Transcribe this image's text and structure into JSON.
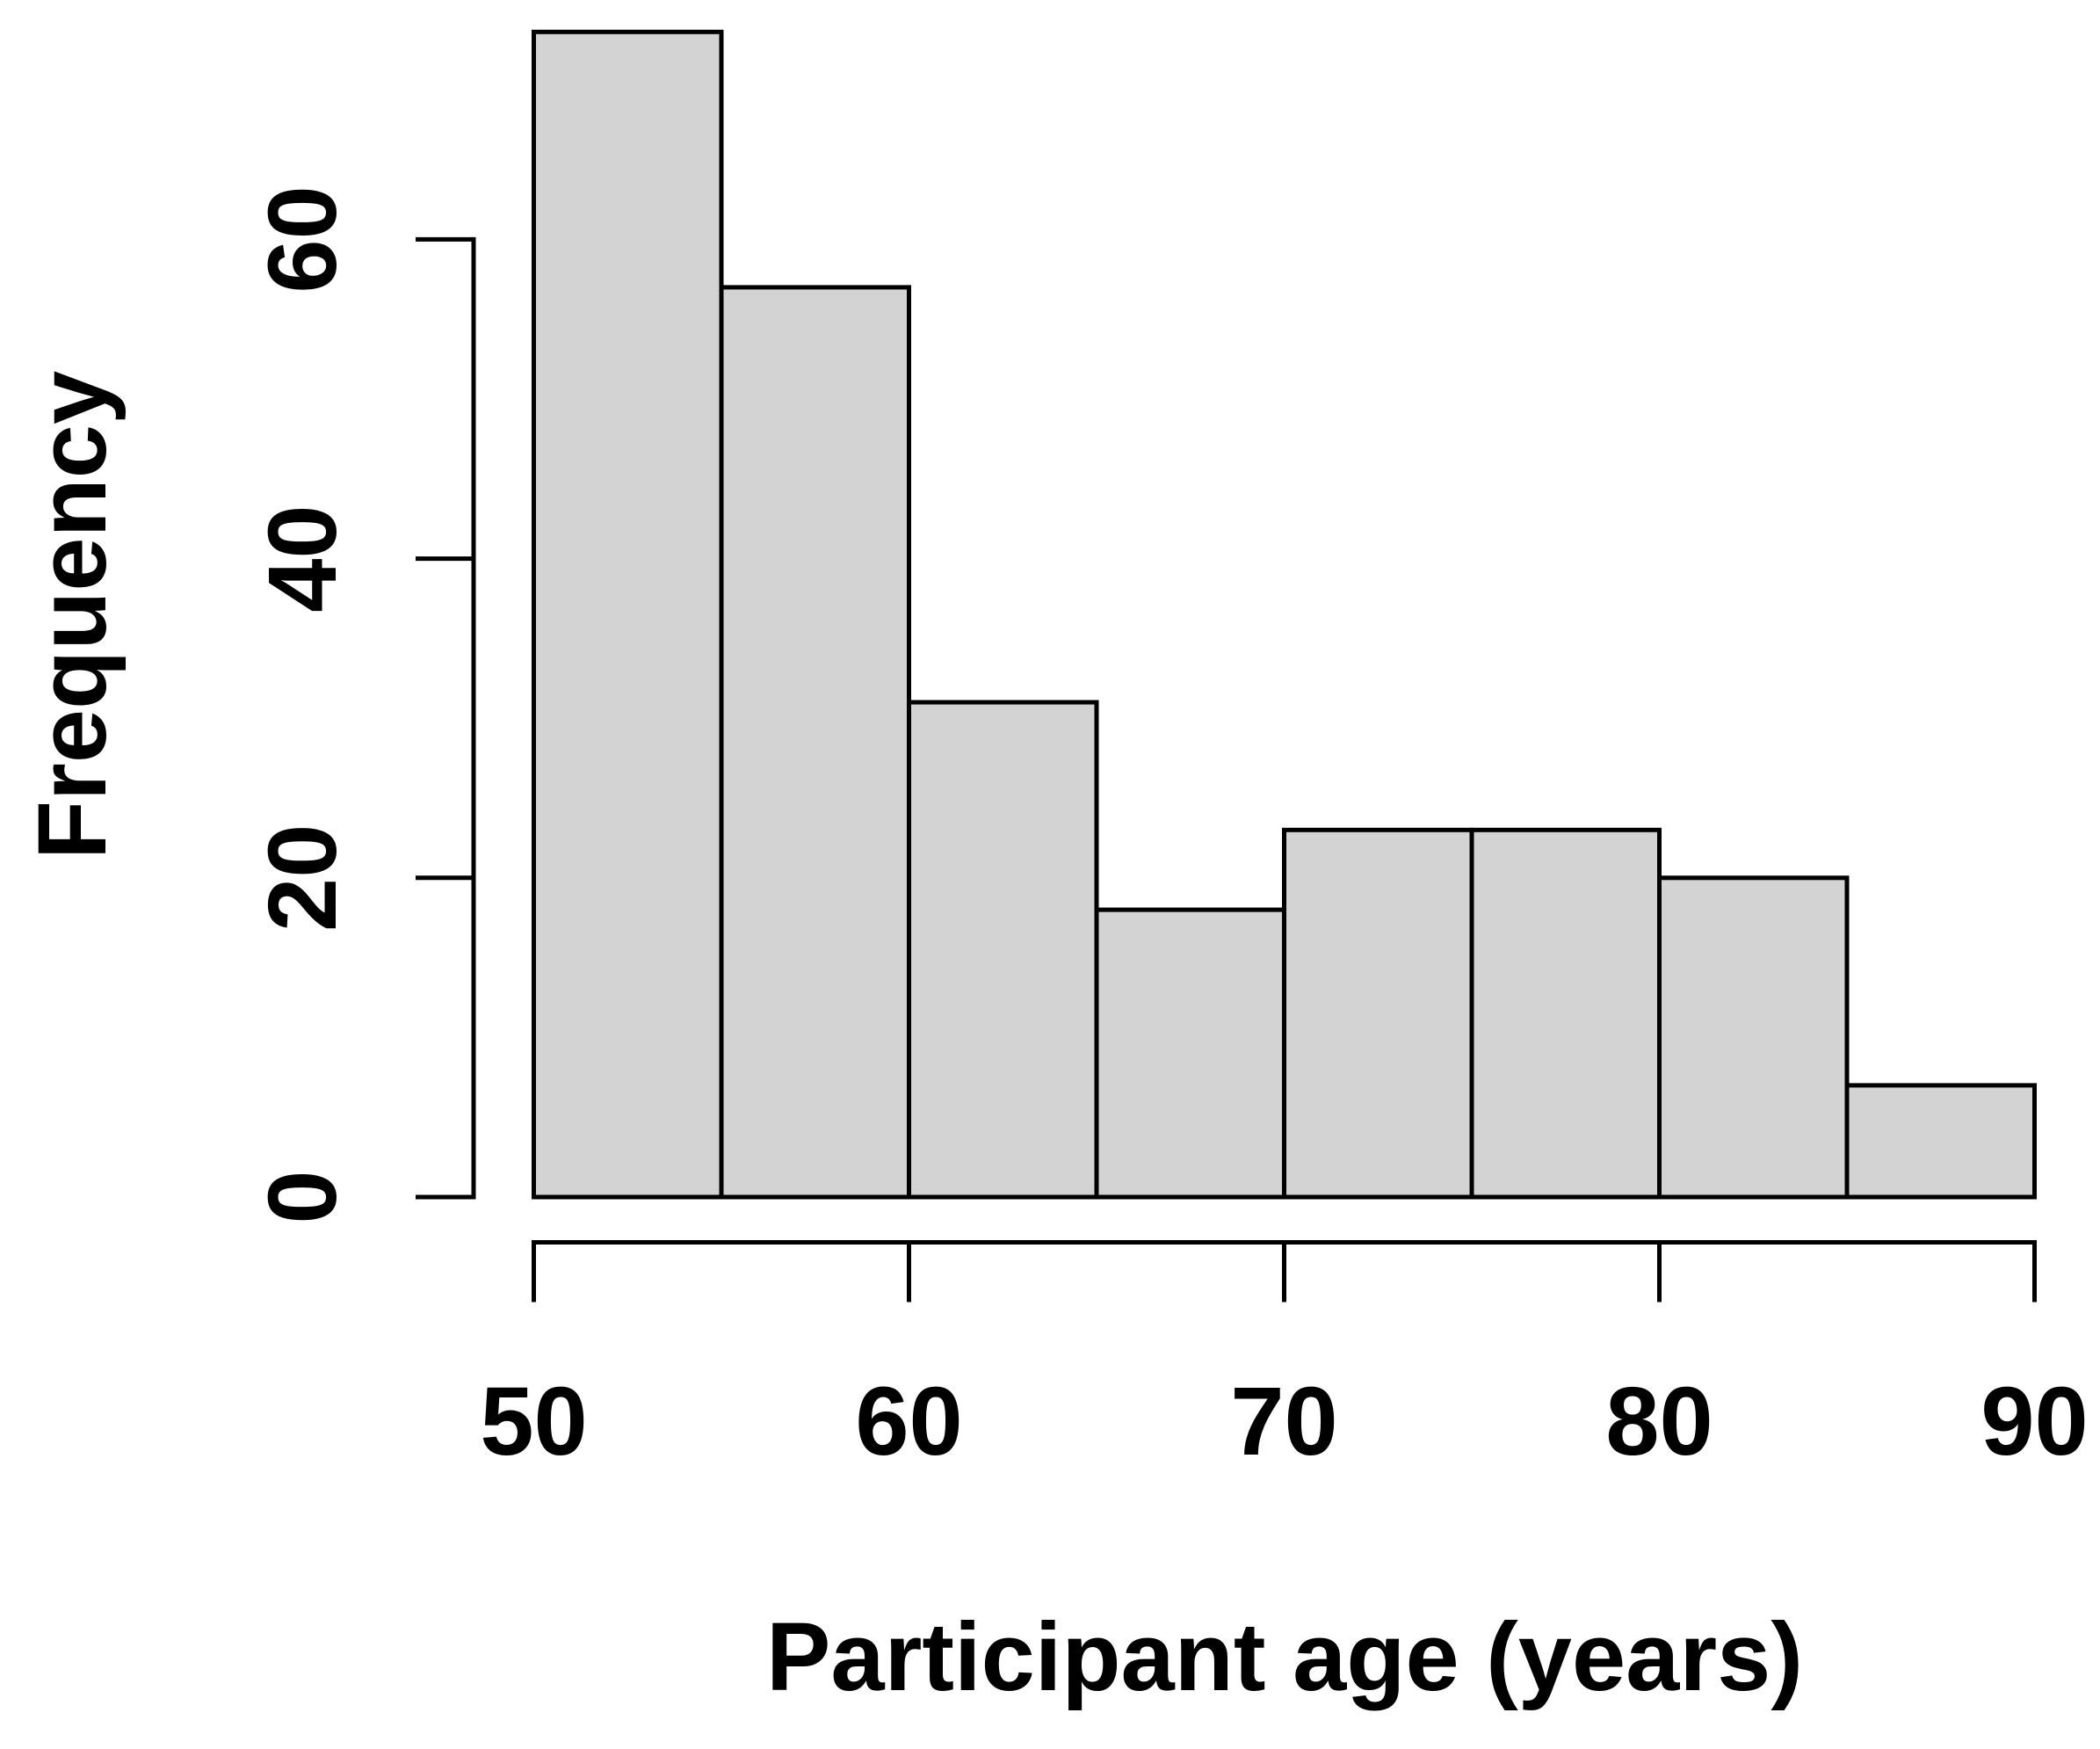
{
  "chart_data": {
    "type": "bar",
    "subtype": "histogram",
    "title": "",
    "xlabel": "Participant age (years)",
    "ylabel": "Frequency",
    "bin_edges": [
      50,
      55,
      60,
      65,
      70,
      75,
      80,
      85,
      90
    ],
    "values": [
      73,
      57,
      31,
      18,
      23,
      23,
      20,
      7
    ],
    "x_ticks": [
      50,
      60,
      70,
      80,
      90
    ],
    "x_tick_labels": [
      "50",
      "60",
      "70",
      "80",
      "90"
    ],
    "y_ticks": [
      0,
      20,
      40,
      60
    ],
    "y_tick_labels": [
      "0",
      "20",
      "40",
      "60"
    ],
    "xlim": [
      50,
      90
    ],
    "ylim": [
      0,
      73
    ],
    "grid": false,
    "legend": null,
    "colors": {
      "bar_fill": "#d3d3d3",
      "bar_border": "#000000",
      "axis": "#000000",
      "text": "#000000",
      "background": "#ffffff"
    }
  }
}
